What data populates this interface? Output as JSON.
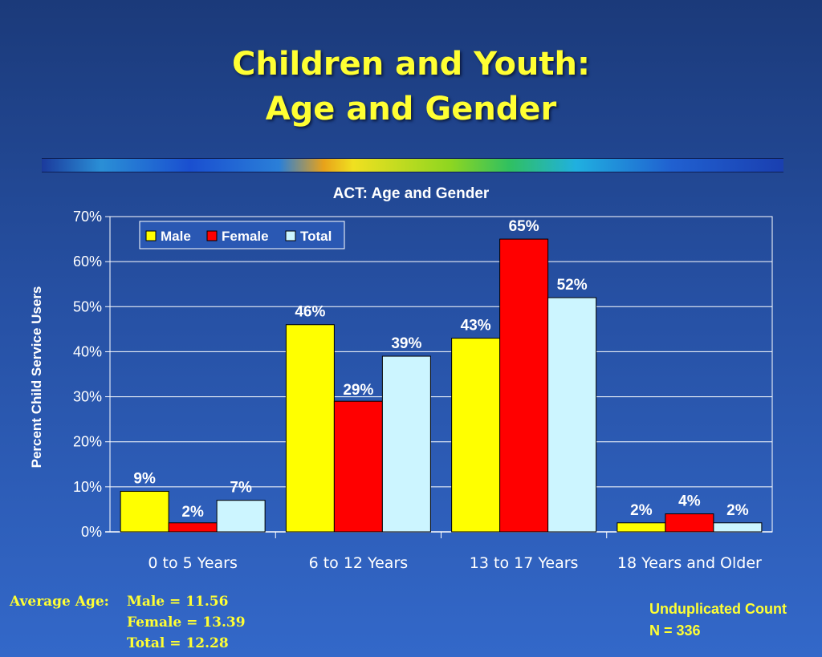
{
  "slide": {
    "title_line1": "Children and Youth:",
    "title_line2": "Age and Gender"
  },
  "chart_data": {
    "type": "bar",
    "title": "ACT: Age and Gender",
    "ylabel": "Percent Child Service Users",
    "xlabel": "",
    "categories": [
      "0 to 5 Years",
      "6 to 12 Years",
      "13 to 17 Years",
      "18 Years and Older"
    ],
    "series": [
      {
        "name": "Male",
        "values": [
          9,
          46,
          43,
          2
        ],
        "labels": [
          "9%",
          "46%",
          "43%",
          "2%"
        ],
        "color": "#ffff00"
      },
      {
        "name": "Female",
        "values": [
          2,
          29,
          65,
          4
        ],
        "labels": [
          "2%",
          "29%",
          "65%",
          "4%"
        ],
        "color": "#ff0000"
      },
      {
        "name": "Total",
        "values": [
          7,
          39,
          52,
          2
        ],
        "labels": [
          "7%",
          "39%",
          "52%",
          "2%"
        ],
        "color": "#ccf5ff"
      }
    ],
    "ylim": [
      0,
      70
    ],
    "yticks": [
      0,
      10,
      20,
      30,
      40,
      50,
      60,
      70
    ],
    "ytick_labels": [
      "0%",
      "10%",
      "20%",
      "30%",
      "40%",
      "50%",
      "60%",
      "70%"
    ],
    "grid": true,
    "legend_position": "top-left"
  },
  "footer": {
    "avg_label": "Average Age:",
    "avg_male": "Male = 11.56",
    "avg_female": "Female = 13.39",
    "avg_total": "Total = 12.28",
    "count_line1": "Unduplicated Count",
    "count_line2": "N = 336"
  }
}
